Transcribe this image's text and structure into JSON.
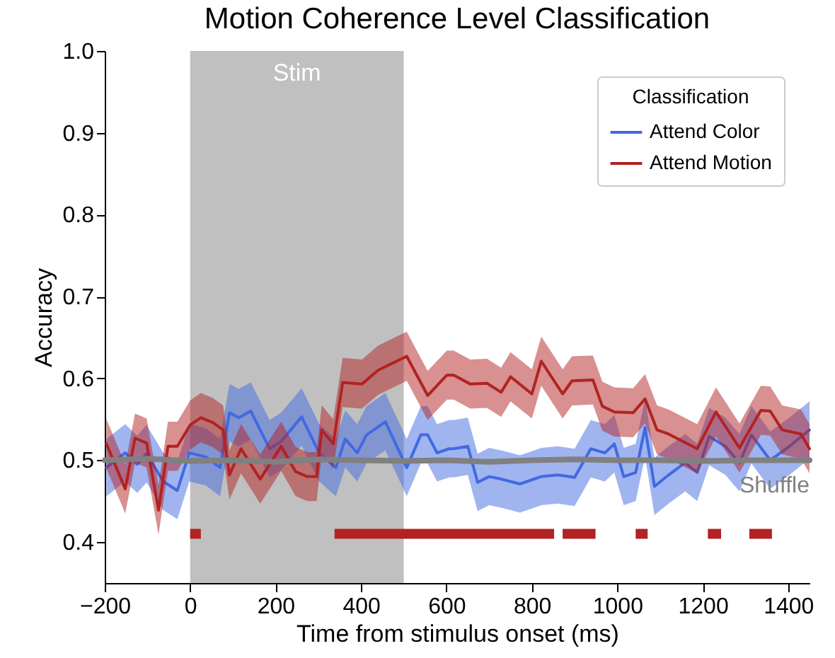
{
  "chart_data": {
    "type": "line",
    "title": "Motion Coherence Level Classification",
    "xlabel": "Time from stimulus onset (ms)",
    "ylabel": "Accuracy",
    "legend_title": "Classification",
    "legend": "top right",
    "grid": false,
    "marker": "none",
    "line_style": "solid",
    "xlim": [
      -200,
      1450
    ],
    "xticks": [
      -200,
      0,
      200,
      400,
      600,
      800,
      1000,
      1200,
      1400
    ],
    "ylim": [
      0.35,
      1.0
    ],
    "yticks": [
      0.4,
      0.5,
      0.6,
      0.7,
      0.8,
      0.9,
      {
        "value": 1.0,
        "label": "1.0"
      }
    ],
    "bands": [
      {
        "axis": "x",
        "from": 0,
        "to": 500,
        "label": "Stim",
        "color": "#c0c0c0"
      }
    ],
    "series": [
      {
        "name": "Attend Color",
        "color": "#4169e1",
        "x": [
          -196,
          -152,
          -124,
          -102,
          -63,
          -30,
          -2,
          37,
          70,
          92,
          114,
          142,
          186,
          213,
          261,
          302,
          341,
          363,
          391,
          413,
          457,
          507,
          540,
          556,
          578,
          606,
          617,
          650,
          673,
          700,
          728,
          772,
          822,
          861,
          900,
          938,
          971,
          993,
          1015,
          1043,
          1065,
          1087,
          1120,
          1159,
          1187,
          1215,
          1253,
          1286,
          1314,
          1358,
          1403,
          1450
        ],
        "values": [
          0.491,
          0.509,
          0.495,
          0.508,
          0.474,
          0.463,
          0.509,
          0.504,
          0.491,
          0.558,
          0.552,
          0.56,
          0.514,
          0.523,
          0.553,
          0.509,
          0.491,
          0.526,
          0.509,
          0.531,
          0.547,
          0.491,
          0.531,
          0.531,
          0.509,
          0.514,
          0.514,
          0.517,
          0.473,
          0.48,
          0.477,
          0.471,
          0.48,
          0.482,
          0.479,
          0.514,
          0.509,
          0.52,
          0.48,
          0.485,
          0.54,
          0.468,
          0.482,
          0.497,
          0.485,
          0.529,
          0.517,
          0.497,
          0.531,
          0.5,
          0.517,
          0.537
        ],
        "lower": [
          0.456,
          0.474,
          0.46,
          0.473,
          0.439,
          0.428,
          0.474,
          0.469,
          0.456,
          0.523,
          0.517,
          0.525,
          0.479,
          0.488,
          0.518,
          0.474,
          0.456,
          0.491,
          0.474,
          0.496,
          0.512,
          0.456,
          0.496,
          0.496,
          0.474,
          0.479,
          0.479,
          0.482,
          0.438,
          0.445,
          0.442,
          0.436,
          0.445,
          0.447,
          0.444,
          0.479,
          0.474,
          0.485,
          0.445,
          0.45,
          0.505,
          0.433,
          0.447,
          0.462,
          0.45,
          0.494,
          0.482,
          0.462,
          0.496,
          0.465,
          0.482,
          0.502
        ],
        "upper": [
          0.526,
          0.544,
          0.53,
          0.543,
          0.509,
          0.498,
          0.544,
          0.539,
          0.526,
          0.593,
          0.587,
          0.595,
          0.549,
          0.558,
          0.588,
          0.544,
          0.526,
          0.561,
          0.544,
          0.566,
          0.582,
          0.526,
          0.566,
          0.566,
          0.544,
          0.549,
          0.549,
          0.552,
          0.508,
          0.515,
          0.512,
          0.506,
          0.515,
          0.517,
          0.514,
          0.549,
          0.544,
          0.555,
          0.515,
          0.52,
          0.575,
          0.503,
          0.517,
          0.532,
          0.52,
          0.564,
          0.552,
          0.532,
          0.566,
          0.535,
          0.552,
          0.572
        ]
      },
      {
        "name": "Attend Motion",
        "color": "#b22222",
        "x": [
          -196,
          -152,
          -129,
          -102,
          -74,
          -52,
          -30,
          0,
          25,
          53,
          77,
          92,
          119,
          164,
          213,
          247,
          274,
          296,
          308,
          335,
          357,
          402,
          440,
          507,
          556,
          601,
          617,
          656,
          695,
          728,
          750,
          800,
          822,
          872,
          894,
          943,
          965,
          993,
          1037,
          1065,
          1093,
          1120,
          1187,
          1231,
          1286,
          1336,
          1358,
          1386,
          1430,
          1450
        ],
        "values": [
          0.52,
          0.465,
          0.527,
          0.521,
          0.439,
          0.517,
          0.517,
          0.543,
          0.552,
          0.546,
          0.537,
          0.482,
          0.514,
          0.477,
          0.517,
          0.486,
          0.48,
          0.48,
          0.537,
          0.52,
          0.595,
          0.593,
          0.61,
          0.627,
          0.579,
          0.604,
          0.604,
          0.593,
          0.594,
          0.583,
          0.602,
          0.581,
          0.621,
          0.581,
          0.597,
          0.598,
          0.566,
          0.559,
          0.558,
          0.575,
          0.537,
          0.532,
          0.514,
          0.559,
          0.515,
          0.561,
          0.56,
          0.537,
          0.532,
          0.514
        ],
        "lower": [
          0.49,
          0.435,
          0.497,
          0.491,
          0.409,
          0.487,
          0.487,
          0.513,
          0.522,
          0.516,
          0.507,
          0.452,
          0.484,
          0.447,
          0.487,
          0.456,
          0.45,
          0.45,
          0.507,
          0.49,
          0.565,
          0.563,
          0.58,
          0.597,
          0.549,
          0.574,
          0.574,
          0.563,
          0.564,
          0.553,
          0.572,
          0.551,
          0.591,
          0.551,
          0.567,
          0.568,
          0.536,
          0.529,
          0.528,
          0.545,
          0.507,
          0.502,
          0.484,
          0.529,
          0.485,
          0.531,
          0.53,
          0.507,
          0.502,
          0.484
        ],
        "upper": [
          0.55,
          0.495,
          0.557,
          0.551,
          0.469,
          0.547,
          0.547,
          0.573,
          0.582,
          0.576,
          0.567,
          0.512,
          0.544,
          0.507,
          0.547,
          0.516,
          0.51,
          0.51,
          0.567,
          0.55,
          0.625,
          0.623,
          0.64,
          0.657,
          0.609,
          0.634,
          0.634,
          0.623,
          0.624,
          0.613,
          0.632,
          0.611,
          0.651,
          0.611,
          0.627,
          0.628,
          0.596,
          0.589,
          0.588,
          0.605,
          0.567,
          0.562,
          0.544,
          0.589,
          0.545,
          0.591,
          0.59,
          0.567,
          0.562,
          0.544
        ]
      },
      {
        "name": "Shuffle",
        "color": "#808080",
        "x": [
          -200,
          -100,
          0,
          100,
          200,
          300,
          400,
          500,
          600,
          700,
          800,
          900,
          1000,
          1100,
          1200,
          1300,
          1400,
          1450
        ],
        "values": [
          0.5,
          0.502,
          0.499,
          0.5,
          0.498,
          0.501,
          0.5,
          0.499,
          0.5,
          0.498,
          0.5,
          0.501,
          0.5,
          0.5,
          0.499,
          0.5,
          0.5,
          0.5
        ]
      },
      {
        "color": "#b22222",
        "x": [
          0,
          25,
          30,
          338,
          852,
          860,
          872,
          949,
          960,
          1043,
          1071,
          1100,
          1212,
          1243,
          1260,
          1309,
          1362
        ],
        "values": [
          0.41,
          0.41,
          null,
          0.41,
          0.41,
          null,
          0.41,
          0.41,
          null,
          0.41,
          0.41,
          null,
          0.41,
          0.41,
          null,
          0.41,
          0.41
        ]
      }
    ]
  }
}
